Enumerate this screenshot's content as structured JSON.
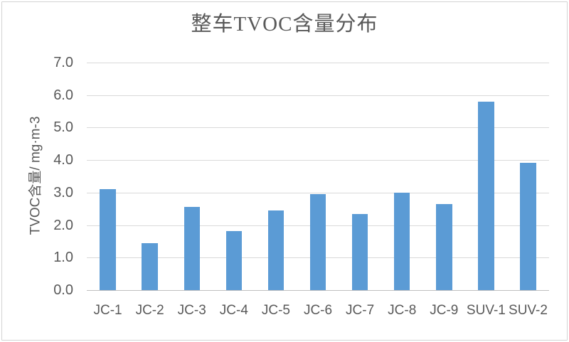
{
  "chart_data": {
    "type": "bar",
    "title": "整车TVOC含量分布",
    "ylabel": "TVOC含量/ mg·m-3",
    "xlabel": "",
    "categories": [
      "JC-1",
      "JC-2",
      "JC-3",
      "JC-4",
      "JC-5",
      "JC-6",
      "JC-7",
      "JC-8",
      "JC-9",
      "SUV-1",
      "SUV-2"
    ],
    "values": [
      3.1,
      1.45,
      2.57,
      1.82,
      2.45,
      2.95,
      2.35,
      3.0,
      2.65,
      5.8,
      3.92
    ],
    "ylim": [
      0,
      7
    ],
    "ytick_step": 1,
    "ytick_decimals": 1,
    "grid": true,
    "legend": false,
    "colors": {
      "bar": "#5B9BD5",
      "gridline": "#D9D9D9",
      "axis_line": "#BFBFBF",
      "text": "#595959",
      "frame_border": "#D3D3D3",
      "background": "#FFFFFF"
    }
  }
}
